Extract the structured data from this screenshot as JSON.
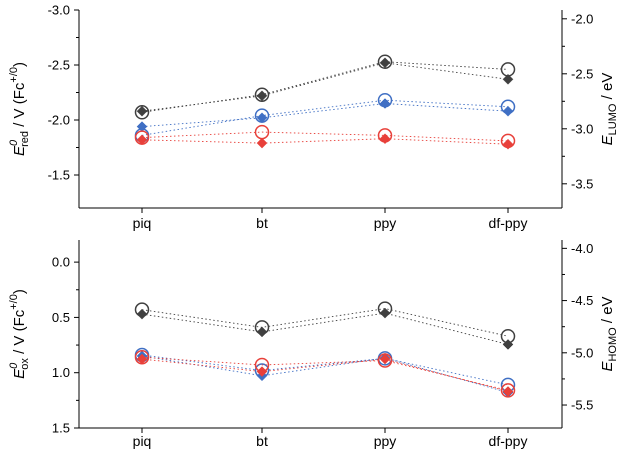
{
  "chart_data": [
    {
      "type": "scatter",
      "categories": [
        "piq",
        "bt",
        "ppy",
        "df-ppy"
      ],
      "left_axis": {
        "main": "E",
        "superscript": "0",
        "subscript": "red",
        "tail": " / V (Fc",
        "tail_sup": "+/0",
        "close": ")",
        "reversed": true,
        "range": [
          -1.2,
          -3.0
        ],
        "ticks": [
          -1.5,
          -2.0,
          -2.5,
          -3.0
        ],
        "tick_labels": [
          "-1.5",
          "-2.0",
          "-2.5",
          "-3.0"
        ]
      },
      "right_axis": {
        "main": "E",
        "subscript": "LUMO",
        "tail": " / eV",
        "range": [
          -3.72,
          -1.92
        ],
        "ticks": [
          -3.5,
          -3.0,
          -2.5,
          -2.0
        ],
        "tick_labels": [
          "-3.5",
          "-3.0",
          "-2.5",
          "-2.0"
        ]
      },
      "series": [
        {
          "color": "#404040",
          "marker": "circle",
          "axis": "left",
          "values": [
            -2.07,
            -2.23,
            -2.53,
            -2.46
          ]
        },
        {
          "color": "#404040",
          "marker": "diamond",
          "axis": "right",
          "values": [
            -2.84,
            -2.7,
            -2.4,
            -2.55
          ]
        },
        {
          "color": "#3f6fc4",
          "marker": "circle",
          "axis": "left",
          "values": [
            -1.86,
            -2.04,
            -2.18,
            -2.12
          ]
        },
        {
          "color": "#3f6fc4",
          "marker": "diamond",
          "axis": "right",
          "values": [
            -2.98,
            -2.9,
            -2.77,
            -2.84
          ]
        },
        {
          "color": "#e8403a",
          "marker": "circle",
          "axis": "left",
          "values": [
            -1.84,
            -1.89,
            -1.86,
            -1.81
          ]
        },
        {
          "color": "#e8403a",
          "marker": "diamond",
          "axis": "right",
          "values": [
            -3.1,
            -3.13,
            -3.09,
            -3.14
          ]
        }
      ]
    },
    {
      "type": "scatter",
      "categories": [
        "piq",
        "bt",
        "ppy",
        "df-ppy"
      ],
      "left_axis": {
        "main": "E",
        "superscript": "0",
        "subscript": "ox",
        "tail": " / V (Fc",
        "tail_sup": "+/0",
        "close": ")",
        "reversed": true,
        "range": [
          1.5,
          -0.2
        ],
        "ticks": [
          0.0,
          0.5,
          1.0,
          1.5
        ],
        "tick_labels": [
          "0.0",
          "0.5",
          "1.0",
          "1.5"
        ]
      },
      "right_axis": {
        "main": "E",
        "subscript": "HOMO",
        "tail": " / eV",
        "range": [
          -5.72,
          -3.92
        ],
        "ticks": [
          -5.5,
          -5.0,
          -4.5,
          -4.0
        ],
        "tick_labels": [
          "-5.5",
          "-5.0",
          "-4.5",
          "-4.0"
        ]
      },
      "series": [
        {
          "color": "#404040",
          "marker": "circle",
          "axis": "left",
          "values": [
            0.43,
            0.59,
            0.42,
            0.67
          ]
        },
        {
          "color": "#404040",
          "marker": "diamond",
          "axis": "right",
          "values": [
            -4.63,
            -4.8,
            -4.62,
            -4.92
          ]
        },
        {
          "color": "#3f6fc4",
          "marker": "circle",
          "axis": "left",
          "values": [
            0.84,
            0.98,
            0.87,
            1.11
          ]
        },
        {
          "color": "#3f6fc4",
          "marker": "diamond",
          "axis": "right",
          "values": [
            -5.03,
            -5.22,
            -5.05,
            -5.38
          ]
        },
        {
          "color": "#e8403a",
          "marker": "circle",
          "axis": "left",
          "values": [
            0.86,
            0.93,
            0.89,
            1.16
          ]
        },
        {
          "color": "#e8403a",
          "marker": "diamond",
          "axis": "right",
          "values": [
            -5.06,
            -5.18,
            -5.06,
            -5.37
          ]
        }
      ]
    }
  ]
}
